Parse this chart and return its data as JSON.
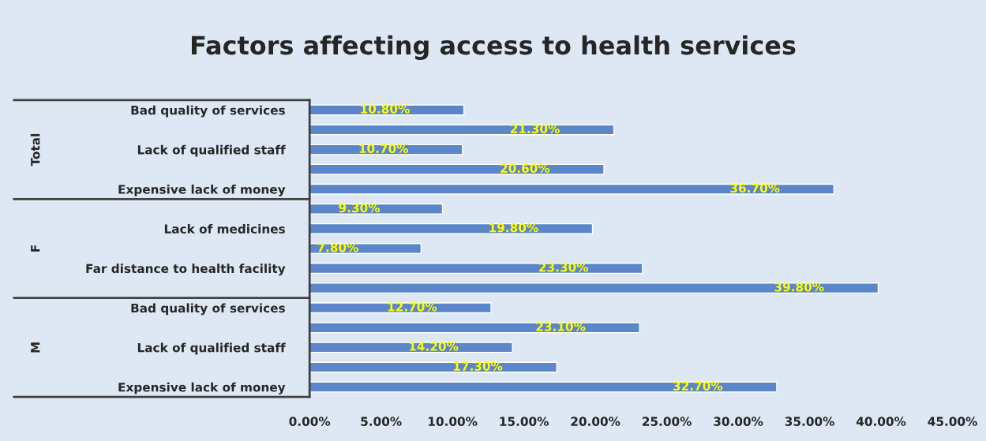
{
  "chart_data": {
    "type": "bar",
    "orientation": "horizontal",
    "title": "Factors affecting access to health services",
    "categories": [
      "Bad quality of services",
      null,
      "Lack of qualified staff",
      null,
      "Expensive lack of money",
      null,
      "Lack of medicines",
      null,
      "Far distance to health facility",
      null,
      "Bad quality of services",
      null,
      "Lack of qualified staff",
      null,
      "Expensive lack of money"
    ],
    "values": [
      10.8,
      21.3,
      10.7,
      20.6,
      36.7,
      9.3,
      19.8,
      7.8,
      23.3,
      39.8,
      12.7,
      23.1,
      14.2,
      17.3,
      32.7
    ],
    "value_labels": [
      "10.80%",
      "21.30%",
      "10.70%",
      "20.60%",
      "36.70%",
      "9.30%",
      "19.80%",
      "7.80%",
      "23.30%",
      "39.80%",
      "12.70%",
      "23.10%",
      "14.20%",
      "17.30%",
      "32.70%"
    ],
    "color": "#5b86c9",
    "xlim": [
      0,
      45
    ],
    "xticks": [
      {
        "value": 0,
        "label": "0.00%"
      },
      {
        "value": 5,
        "label": "5.00%"
      },
      {
        "value": 10,
        "label": "10.00%"
      },
      {
        "value": 15,
        "label": "15.00%"
      },
      {
        "value": 20,
        "label": "20.00%"
      },
      {
        "value": 25,
        "label": "25.00%"
      },
      {
        "value": 30,
        "label": "30.00%"
      },
      {
        "value": 35,
        "label": "35.00%"
      },
      {
        "value": 40,
        "label": "40.00%"
      },
      {
        "value": 45,
        "label": "45.00%"
      }
    ],
    "annotations": [
      "Total",
      "F",
      "M"
    ],
    "grid": false,
    "legend": false
  }
}
